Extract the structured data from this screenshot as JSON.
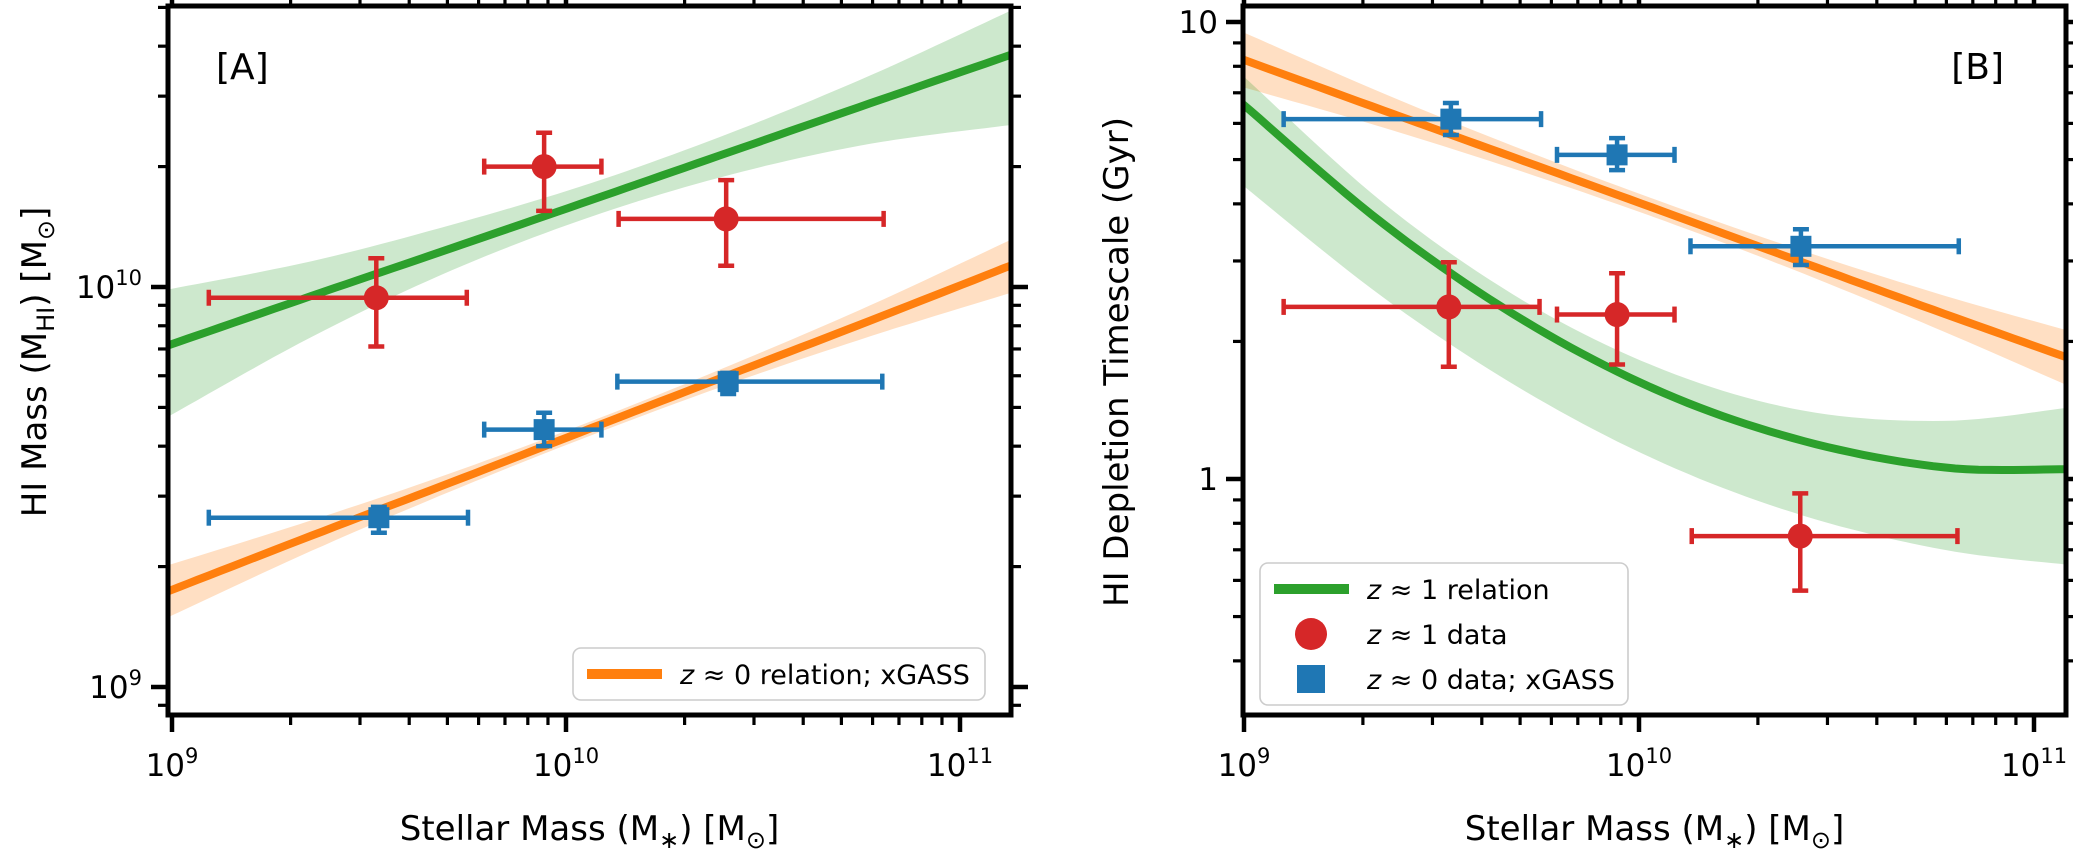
{
  "figure": {
    "background": "#ffffff",
    "description": "Two-panel log-log plot of HI gas properties vs stellar mass"
  },
  "colors": {
    "green": "#2ca02c",
    "orange": "#ff7f0e",
    "red": "#d62728",
    "blue": "#1f77b4",
    "green_band": "rgba(44,160,44,0.24)",
    "orange_band": "rgba(255,127,14,0.25)"
  },
  "chart_data": [
    {
      "panel": "A",
      "type": "line+scatter",
      "corner_label": "[A]",
      "xscale": "log",
      "yscale": "log",
      "xlim": [
        960000000.0,
        136000000000.0
      ],
      "ylim": [
        840000000.0,
        50500000000.0
      ],
      "xlabel_parts": [
        {
          "t": "Stellar Mass (M"
        },
        {
          "t": "∗",
          "sub": true
        },
        {
          "t": ") [M"
        },
        {
          "t": "⊙",
          "sub": true
        },
        {
          "t": "]"
        }
      ],
      "ylabel_parts": [
        {
          "t": "HI Mass (M"
        },
        {
          "t": "HI",
          "sub": true
        },
        {
          "t": ") [M"
        },
        {
          "t": "⊙",
          "sub": true
        },
        {
          "t": "]"
        }
      ],
      "x_ticks": [
        {
          "v": 1000000000.0,
          "base": "10",
          "exp": "9"
        },
        {
          "v": 10000000000.0,
          "base": "10",
          "exp": "10"
        },
        {
          "v": 100000000000.0,
          "base": "10",
          "exp": "11"
        }
      ],
      "y_ticks": [
        {
          "v": 1000000000.0,
          "base": "10",
          "exp": "9"
        },
        {
          "v": 10000000000.0,
          "base": "10",
          "exp": "10"
        }
      ],
      "series": [
        {
          "name": "z ≈ 1 relation",
          "style": "line-band",
          "color": "#2ca02c",
          "band_color": "rgba(44,160,44,0.24)",
          "x": [
            1000000000.0,
            2260000000.0,
            5120000000.0,
            11600000000.0,
            26200000000.0,
            59200000000.0,
            134000000000.0
          ],
          "y": [
            7200000000.0,
            9500000000.0,
            12500000000.0,
            16500000000.0,
            21800000000.0,
            28800000000.0,
            38000000000.0
          ],
          "y_upper": [
            9900000000.0,
            11600000000.0,
            14300000000.0,
            18200000000.0,
            24300000000.0,
            33800000000.0,
            49000000000.0
          ],
          "y_lower": [
            4800000000.0,
            7500000000.0,
            11000000000.0,
            15000000000.0,
            19100000000.0,
            22800000000.0,
            25400000000.0
          ]
        },
        {
          "name": "z ≈ 0 relation; xGASS",
          "style": "line-band",
          "color": "#ff7f0e",
          "band_color": "rgba(255,127,14,0.25)",
          "x": [
            1000000000.0,
            2260000000.0,
            5120000000.0,
            11600000000.0,
            26200000000.0,
            59200000000.0,
            134000000000.0
          ],
          "y": [
            1750000000.0,
            2390000000.0,
            3250000000.0,
            4440000000.0,
            6050000000.0,
            8240000000.0,
            11300000000.0
          ],
          "y_upper": [
            2030000000.0,
            2610000000.0,
            3430000000.0,
            4620000000.0,
            6380000000.0,
            9000000000.0,
            13100000000.0
          ],
          "y_lower": [
            1510000000.0,
            2190000000.0,
            3090000000.0,
            4260000000.0,
            5740000000.0,
            7530000000.0,
            9660000000.0
          ]
        },
        {
          "name": "z ≈ 1 data",
          "style": "scatter",
          "marker": "circle",
          "color": "#d62728",
          "points": [
            {
              "x": 3300000000.0,
              "x_lo": 1240000000.0,
              "x_hi": 5600000000.0,
              "y": 9400000000.0,
              "y_lo": 7100000000.0,
              "y_hi": 11800000000.0
            },
            {
              "x": 8800000000.0,
              "x_lo": 6200000000.0,
              "x_hi": 12300000000.0,
              "y": 20000000000.0,
              "y_lo": 15500000000.0,
              "y_hi": 24300000000.0
            },
            {
              "x": 25500000000.0,
              "x_lo": 13600000000.0,
              "x_hi": 64000000000.0,
              "y": 14800000000.0,
              "y_lo": 11300000000.0,
              "y_hi": 18500000000.0
            }
          ]
        },
        {
          "name": "z ≈ 0 data; xGASS",
          "style": "scatter",
          "marker": "square",
          "color": "#1f77b4",
          "points": [
            {
              "x": 3350000000.0,
              "x_lo": 1240000000.0,
              "x_hi": 5640000000.0,
              "y": 2650000000.0,
              "y_lo": 2430000000.0,
              "y_hi": 2820000000.0
            },
            {
              "x": 8800000000.0,
              "x_lo": 6200000000.0,
              "x_hi": 12300000000.0,
              "y": 4400000000.0,
              "y_lo": 4000000000.0,
              "y_hi": 4850000000.0
            },
            {
              "x": 25800000000.0,
              "x_lo": 13500000000.0,
              "x_hi": 63500000000.0,
              "y": 5800000000.0,
              "y_lo": 5400000000.0,
              "y_hi": 6100000000.0
            }
          ]
        }
      ],
      "legend": {
        "position": "lower right",
        "entries": [
          {
            "swatch": "line",
            "color": "#ff7f0e",
            "label_italic": "z",
            "label_text": " ≈ 0 relation; xGASS"
          }
        ]
      }
    },
    {
      "panel": "B",
      "type": "line+scatter",
      "corner_label": "[B]",
      "xscale": "log",
      "yscale": "log",
      "xlim": [
        1000000000.0,
        121000000000.0
      ],
      "ylim": [
        0.305,
        10.8
      ],
      "xlabel_parts": [
        {
          "t": "Stellar Mass (M"
        },
        {
          "t": "∗",
          "sub": true
        },
        {
          "t": ") [M"
        },
        {
          "t": "⊙",
          "sub": true
        },
        {
          "t": "]"
        }
      ],
      "ylabel_parts": [
        {
          "t": "HI Depletion Timescale (Gyr)"
        }
      ],
      "x_ticks": [
        {
          "v": 1000000000.0,
          "base": "10",
          "exp": "9"
        },
        {
          "v": 10000000000.0,
          "base": "10",
          "exp": "10"
        },
        {
          "v": 100000000000.0,
          "base": "10",
          "exp": "11"
        }
      ],
      "y_ticks": [
        {
          "v": 10,
          "base": "10"
        },
        {
          "v": 1,
          "base": "1"
        }
      ],
      "series": [
        {
          "name": "z ≈ 0 relation; xGASS",
          "style": "line-band",
          "color": "#ff7f0e",
          "band_color": "rgba(255,127,14,0.25)",
          "x": [
            1000000000.0,
            2260000000.0,
            5120000000.0,
            11600000000.0,
            26200000000.0,
            59200000000.0,
            120000000000.0
          ],
          "y": [
            8.26,
            6.4,
            4.96,
            3.84,
            2.97,
            2.3,
            1.85
          ],
          "y_upper": [
            9.48,
            6.97,
            5.24,
            4.02,
            3.15,
            2.52,
            2.12
          ],
          "y_lower": [
            7.19,
            5.87,
            4.69,
            3.67,
            2.81,
            2.1,
            1.61
          ]
        },
        {
          "name": "z ≈ 1 relation",
          "style": "line-band",
          "color": "#2ca02c",
          "band_color": "rgba(44,160,44,0.24)",
          "x": [
            1000000000.0,
            2260000000.0,
            5120000000.0,
            11600000000.0,
            26200000000.0,
            59200000000.0,
            120000000000.0
          ],
          "y": [
            6.58,
            3.61,
            2.22,
            1.54,
            1.21,
            1.06,
            1.05
          ],
          "y_upper": [
            7.59,
            4.01,
            2.45,
            1.73,
            1.41,
            1.34,
            1.43
          ],
          "y_lower": [
            4.37,
            2.49,
            1.56,
            1.08,
            0.83,
            0.7,
            0.65
          ]
        },
        {
          "name": "z ≈ 1 data",
          "style": "scatter",
          "marker": "circle",
          "color": "#d62728",
          "points": [
            {
              "x": 3300000000.0,
              "x_lo": 1260000000.0,
              "x_hi": 5600000000.0,
              "y": 2.38,
              "y_lo": 1.76,
              "y_hi": 2.98
            },
            {
              "x": 8800000000.0,
              "x_lo": 6200000000.0,
              "x_hi": 12300000000.0,
              "y": 2.29,
              "y_lo": 1.78,
              "y_hi": 2.82
            },
            {
              "x": 25600000000.0,
              "x_lo": 13600000000.0,
              "x_hi": 64000000000.0,
              "y": 0.75,
              "y_lo": 0.57,
              "y_hi": 0.93
            }
          ]
        },
        {
          "name": "z ≈ 0 data; xGASS",
          "style": "scatter",
          "marker": "square",
          "color": "#1f77b4",
          "points": [
            {
              "x": 3340000000.0,
              "x_lo": 1260000000.0,
              "x_hi": 5650000000.0,
              "y": 6.13,
              "y_lo": 5.66,
              "y_hi": 6.65
            },
            {
              "x": 8800000000.0,
              "x_lo": 6200000000.0,
              "x_hi": 12300000000.0,
              "y": 5.12,
              "y_lo": 4.74,
              "y_hi": 5.57
            },
            {
              "x": 25700000000.0,
              "x_lo": 13500000000.0,
              "x_hi": 64500000000.0,
              "y": 3.23,
              "y_lo": 2.94,
              "y_hi": 3.52
            }
          ]
        }
      ],
      "legend": {
        "position": "lower left",
        "entries": [
          {
            "swatch": "line",
            "color": "#2ca02c",
            "label_italic": "z",
            "label_text": " ≈ 1 relation"
          },
          {
            "swatch": "circle",
            "color": "#d62728",
            "label_italic": "z",
            "label_text": " ≈ 1 data"
          },
          {
            "swatch": "square",
            "color": "#1f77b4",
            "label_italic": "z",
            "label_text": " ≈ 0 data; xGASS"
          }
        ]
      }
    }
  ]
}
